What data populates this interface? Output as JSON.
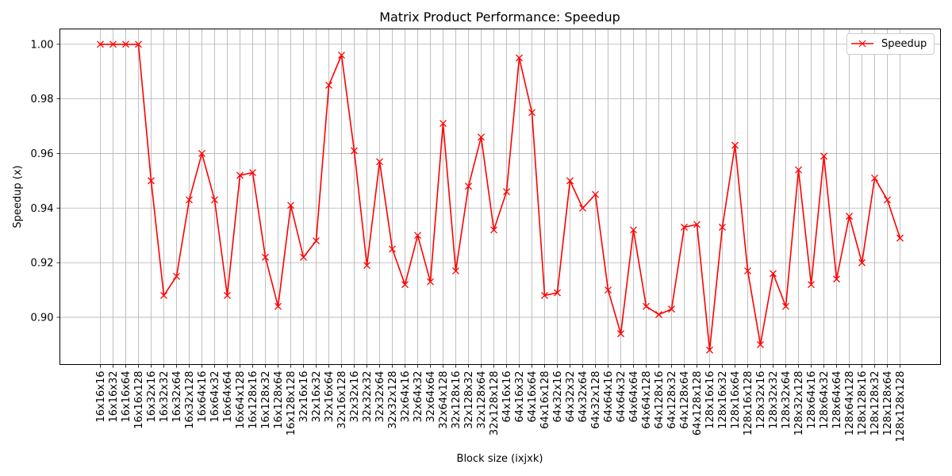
{
  "chart_data": {
    "type": "line",
    "title": "Matrix Product Performance: Speedup",
    "xlabel": "Block size (ixjxk)",
    "ylabel": "Speedup (x)",
    "categories": [
      "16x16x16",
      "16x16x32",
      "16x16x64",
      "16x16x128",
      "16x32x16",
      "16x32x32",
      "16x32x64",
      "16x32x128",
      "16x64x16",
      "16x64x32",
      "16x64x64",
      "16x64x128",
      "16x128x16",
      "16x128x32",
      "16x128x64",
      "16x128x128",
      "32x16x16",
      "32x16x32",
      "32x16x64",
      "32x16x128",
      "32x32x16",
      "32x32x32",
      "32x32x64",
      "32x32x128",
      "32x64x16",
      "32x64x32",
      "32x64x64",
      "32x64x128",
      "32x128x16",
      "32x128x32",
      "32x128x64",
      "32x128x128",
      "64x16x16",
      "64x16x32",
      "64x16x64",
      "64x16x128",
      "64x32x16",
      "64x32x32",
      "64x32x64",
      "64x32x128",
      "64x64x16",
      "64x64x32",
      "64x64x64",
      "64x64x128",
      "64x128x16",
      "64x128x32",
      "64x128x64",
      "64x128x128",
      "128x16x16",
      "128x16x32",
      "128x16x64",
      "128x16x128",
      "128x32x16",
      "128x32x32",
      "128x32x64",
      "128x32x128",
      "128x64x16",
      "128x64x32",
      "128x64x64",
      "128x64x128",
      "128x128x16",
      "128x128x32",
      "128x128x64",
      "128x128x128"
    ],
    "series": [
      {
        "name": "Speedup",
        "color": "#ff0000",
        "marker": "x",
        "values": [
          1.0,
          1.0,
          1.0,
          1.0,
          0.95,
          0.908,
          0.915,
          0.943,
          0.96,
          0.943,
          0.908,
          0.952,
          0.953,
          0.922,
          0.904,
          0.941,
          0.922,
          0.928,
          0.985,
          0.996,
          0.961,
          0.919,
          0.957,
          0.925,
          0.912,
          0.93,
          0.913,
          0.971,
          0.917,
          0.948,
          0.966,
          0.932,
          0.946,
          0.995,
          0.975,
          0.908,
          0.909,
          0.95,
          0.94,
          0.945,
          0.91,
          0.894,
          0.932,
          0.904,
          0.901,
          0.903,
          0.933,
          0.934,
          0.888,
          0.933,
          0.963,
          0.917,
          0.89,
          0.916,
          0.904,
          0.954,
          0.912,
          0.959,
          0.914,
          0.937,
          0.92,
          0.951,
          0.943,
          0.929
        ]
      }
    ],
    "yticks": [
      0.9,
      0.92,
      0.94,
      0.96,
      0.98,
      1.0
    ],
    "ylim": [
      0.8827,
      1.0056
    ],
    "grid": true,
    "legend_position": "top-right"
  }
}
